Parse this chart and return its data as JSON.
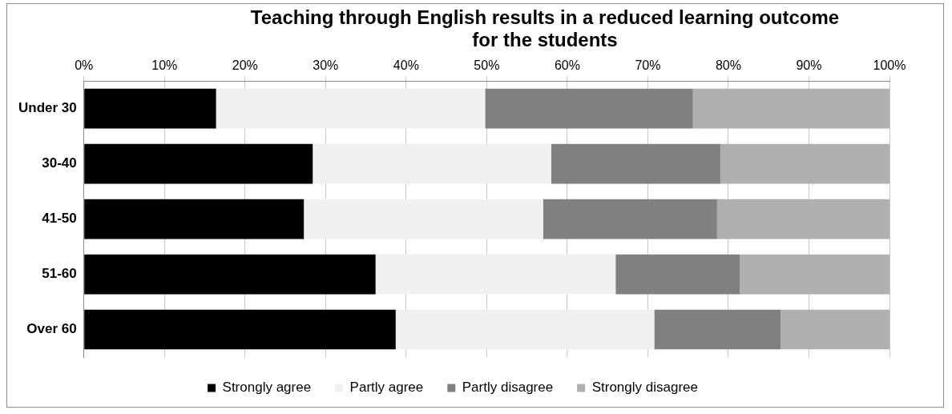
{
  "chart_data": {
    "type": "bar",
    "title": "Teaching through English results in a reduced learning outcome for the students",
    "orientation": "horizontal",
    "stacked": true,
    "categories": [
      "Under 30",
      "30-40",
      "41-50",
      "51-60",
      "Over 60"
    ],
    "series": [
      {
        "name": "Strongly agree",
        "color": "#000000",
        "values": [
          16.4,
          28.4,
          27.3,
          36.2,
          38.7
        ]
      },
      {
        "name": "Partly agree",
        "color": "#f0f0f0",
        "values": [
          33.4,
          29.6,
          29.7,
          29.8,
          32.1
        ]
      },
      {
        "name": "Partly disagree",
        "color": "#808080",
        "values": [
          25.8,
          21.0,
          21.6,
          15.4,
          15.7
        ]
      },
      {
        "name": "Strongly disagree",
        "color": "#b0b0b0",
        "values": [
          24.4,
          21.0,
          21.4,
          18.6,
          13.5
        ]
      }
    ],
    "xlim": [
      0,
      100
    ],
    "xticks": [
      {
        "value": 0,
        "label": "0%"
      },
      {
        "value": 10,
        "label": "10%"
      },
      {
        "value": 20,
        "label": "20%"
      },
      {
        "value": 30,
        "label": "30%"
      },
      {
        "value": 40,
        "label": "40%"
      },
      {
        "value": 50,
        "label": "50%"
      },
      {
        "value": 60,
        "label": "60%"
      },
      {
        "value": 70,
        "label": "70%"
      },
      {
        "value": 80,
        "label": "80%"
      },
      {
        "value": 90,
        "label": "90%"
      },
      {
        "value": 100,
        "label": "100%"
      }
    ],
    "grid": "x",
    "legend": "bottom"
  }
}
